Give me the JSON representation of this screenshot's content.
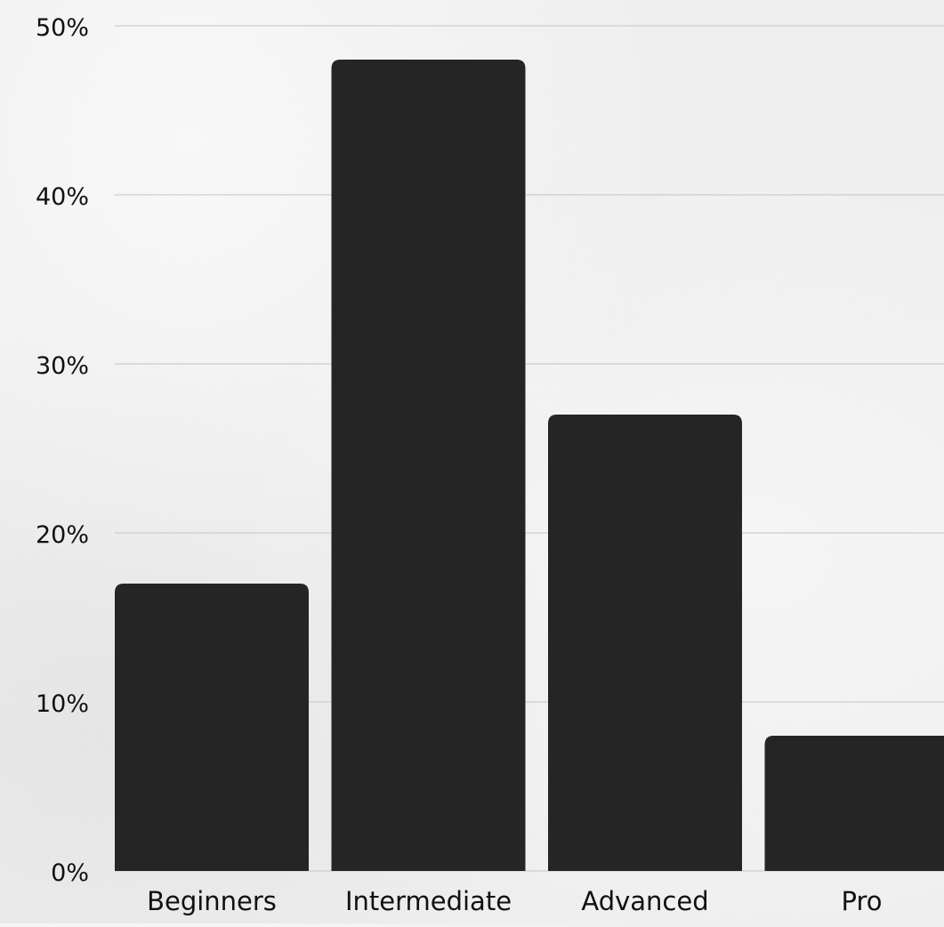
{
  "chart_data": {
    "type": "bar",
    "title": "",
    "xlabel": "",
    "ylabel": "",
    "categories": [
      "Beginners",
      "Intermediate",
      "Advanced",
      "Pro"
    ],
    "values": [
      17,
      48,
      27,
      8
    ],
    "ylim": [
      0,
      50
    ],
    "yticks": [
      "0%",
      "10%",
      "20%",
      "30%",
      "40%",
      "50%"
    ],
    "grid": true,
    "legend": "none",
    "colors": {
      "bar": "#252525",
      "grid": "#c4c4c4",
      "text": "#111111"
    }
  }
}
